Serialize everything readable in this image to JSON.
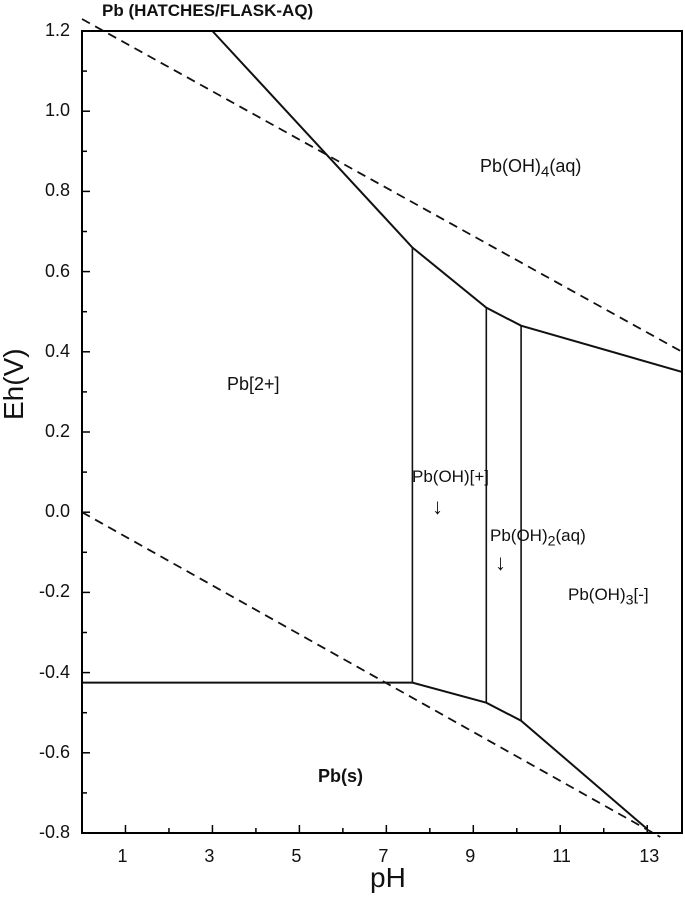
{
  "title": "Pb (HATCHES/FLASK-AQ)",
  "xlabel": "pH",
  "ylabel": "Eh(V)",
  "x_ticks": [
    "1",
    "3",
    "5",
    "7",
    "9",
    "11",
    "13"
  ],
  "y_ticks": [
    "1.2",
    "1.0",
    "0.8",
    "0.6",
    "0.4",
    "0.2",
    "0.0",
    "-0.2",
    "-0.4",
    "-0.6",
    "-0.8"
  ],
  "regions": {
    "pb_oh4": {
      "base": "Pb(OH)",
      "sub": "4",
      "tail": "(aq)"
    },
    "pb2": "Pb[2+]",
    "pboh_plus": "Pb(OH)[+]",
    "pb_oh2": {
      "base": "Pb(OH)",
      "sub": "2",
      "tail": "(aq)"
    },
    "pb_oh3": {
      "base": "Pb(OH)",
      "sub": "3",
      "tail": "[-]"
    },
    "pbs": "Pb(s)"
  },
  "chart_data": {
    "type": "phase-diagram",
    "xlim": [
      0,
      13.8
    ],
    "ylim": [
      -0.8,
      1.2
    ],
    "boundaries": [
      {
        "style": "solid",
        "points": [
          [
            3.0,
            1.2
          ],
          [
            7.6,
            0.66
          ],
          [
            9.3,
            0.51
          ],
          [
            10.1,
            0.465
          ],
          [
            13.8,
            0.35
          ]
        ]
      },
      {
        "style": "solid",
        "points": [
          [
            0,
            -0.425
          ],
          [
            7.6,
            -0.425
          ],
          [
            9.3,
            -0.475
          ],
          [
            10.1,
            -0.52
          ],
          [
            13.0,
            -0.79
          ]
        ]
      },
      {
        "style": "solid",
        "points": [
          [
            7.6,
            0.66
          ],
          [
            7.6,
            -0.425
          ]
        ]
      },
      {
        "style": "solid",
        "points": [
          [
            9.3,
            0.51
          ],
          [
            9.3,
            -0.475
          ]
        ]
      },
      {
        "style": "solid",
        "points": [
          [
            10.1,
            0.465
          ],
          [
            10.1,
            -0.52
          ]
        ]
      },
      {
        "style": "dashed",
        "points": [
          [
            0,
            1.23
          ],
          [
            13.8,
            0.4
          ]
        ]
      },
      {
        "style": "dashed",
        "points": [
          [
            0,
            0.0
          ],
          [
            13.3,
            -0.81
          ]
        ]
      }
    ]
  }
}
